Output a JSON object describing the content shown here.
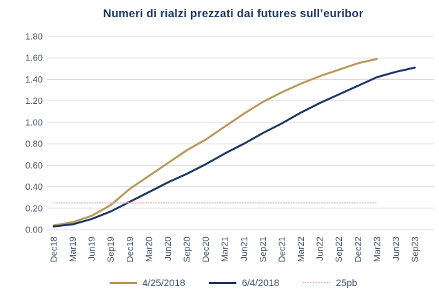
{
  "title": "Numeri di rialzi prezzati dai futures sull’euribor",
  "colors": {
    "title": "#1F3864",
    "axis_label": "#44546A",
    "gridline": "#D9D9D9",
    "background": "#FFFFFF"
  },
  "legend": [
    {
      "label": "4/25/2018",
      "swatch": "gold-solid-line"
    },
    {
      "label": "6/4/2018",
      "swatch": "navy-solid-line"
    },
    {
      "label": "25pb",
      "swatch": "pink-dotted-line"
    }
  ],
  "chart_data": {
    "type": "line",
    "title": "Numeri di rialzi prezzati dai futures sull’euribor",
    "xlabel": "",
    "ylabel": "",
    "ylim": [
      0,
      1.8
    ],
    "grid": true,
    "legend_position": "bottom",
    "y_ticks": [
      "0.00",
      "0.20",
      "0.40",
      "0.60",
      "0.80",
      "1.00",
      "1.20",
      "1.40",
      "1.60",
      "1.80"
    ],
    "categories": [
      "Dec18",
      "Mar19",
      "Jun19",
      "Sep19",
      "Dec19",
      "Mar20",
      "Jun20",
      "Sep20",
      "Dec20",
      "Mar21",
      "Jun21",
      "Sep21",
      "Dec21",
      "Mar22",
      "Jun22",
      "Sep22",
      "Dec22",
      "Mar23",
      "Jun23",
      "Sep23"
    ],
    "series": [
      {
        "name": "4/25/2018",
        "color": "#B7995A",
        "style": "solid",
        "values": [
          0.04,
          0.07,
          0.13,
          0.23,
          0.38,
          0.5,
          0.62,
          0.74,
          0.84,
          0.96,
          1.08,
          1.19,
          1.28,
          1.36,
          1.43,
          1.49,
          1.55,
          1.59
        ]
      },
      {
        "name": "6/4/2018",
        "color": "#1F3864",
        "style": "solid",
        "values": [
          0.03,
          0.05,
          0.1,
          0.17,
          0.26,
          0.35,
          0.44,
          0.52,
          0.61,
          0.71,
          0.8,
          0.9,
          0.99,
          1.09,
          1.18,
          1.26,
          1.34,
          1.42,
          1.47,
          1.51
        ]
      },
      {
        "name": "25pb",
        "color": "#EDB8B8",
        "style": "dotted",
        "values": [
          0.25,
          0.25,
          0.25,
          0.25,
          0.25,
          0.25,
          0.25,
          0.25,
          0.25,
          0.25,
          0.25,
          0.25,
          0.25,
          0.25,
          0.25,
          0.25,
          0.25,
          0.25
        ]
      }
    ]
  }
}
